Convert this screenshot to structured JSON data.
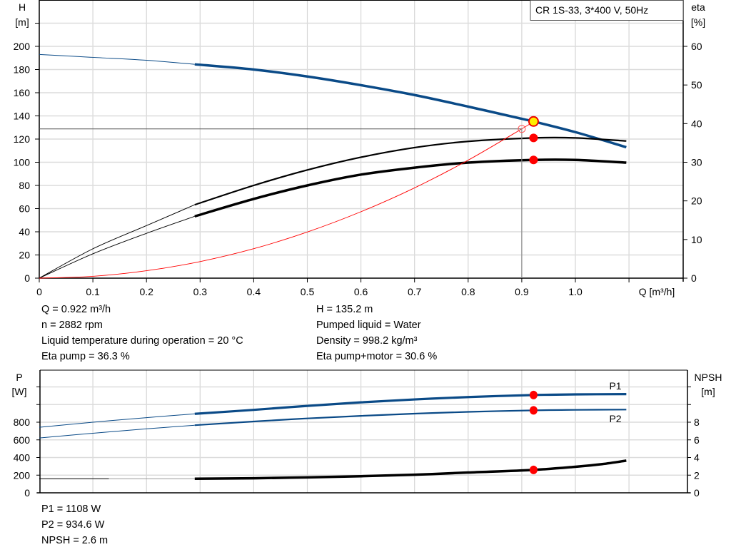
{
  "chart_data": [
    {
      "type": "line",
      "title": "CR 1S-33, 3*400 V, 50Hz",
      "xlabel": "Q [m³/h]",
      "ylabel_left": [
        "H",
        "[m]"
      ],
      "ylabel_right": [
        "eta",
        "[%]"
      ],
      "xlim": [
        0,
        1.2
      ],
      "ylim_left": [
        0,
        240
      ],
      "ylim_right": [
        0,
        72
      ],
      "x_ticks": [
        "0",
        "0.1",
        "0.2",
        "0.3",
        "0.4",
        "0.5",
        "0.6",
        "0.7",
        "0.8",
        "0.9",
        "1.0"
      ],
      "y_ticks_left": [
        "0",
        "20",
        "40",
        "60",
        "80",
        "100",
        "120",
        "140",
        "160",
        "180",
        "200"
      ],
      "y_ticks_right": [
        "0",
        "10",
        "20",
        "30",
        "40",
        "50",
        "60"
      ],
      "grid": true,
      "series": [
        {
          "key": "H",
          "axis": "left",
          "color": "#0a4a87",
          "x": [
            0,
            0.1,
            0.2,
            0.29,
            0.4,
            0.5,
            0.6,
            0.7,
            0.8,
            0.9,
            0.922,
            1.0,
            1.095
          ],
          "y": [
            193,
            190.5,
            188,
            184.5,
            180,
            174,
            166.5,
            158,
            148,
            137.5,
            135.2,
            126,
            113
          ]
        },
        {
          "key": "eta_pump",
          "axis": "right",
          "color": "#000000",
          "x": [
            0,
            0.1,
            0.2,
            0.29,
            0.4,
            0.5,
            0.6,
            0.7,
            0.8,
            0.922,
            1.0,
            1.095
          ],
          "y": [
            0,
            7.6,
            13.6,
            19,
            24,
            28,
            31.3,
            33.8,
            35.4,
            36.3,
            36.3,
            35.5
          ]
        },
        {
          "key": "eta_pump_motor",
          "axis": "right",
          "color": "#000000",
          "x": [
            0,
            0.1,
            0.2,
            0.29,
            0.4,
            0.5,
            0.6,
            0.7,
            0.8,
            0.922,
            1.0,
            1.095
          ],
          "y": [
            0,
            6.3,
            11.6,
            16,
            20.5,
            24,
            26.8,
            28.6,
            29.9,
            30.6,
            30.6,
            29.9
          ]
        },
        {
          "key": "system_curve",
          "axis": "left",
          "color": "#ff0000",
          "x": [
            0,
            0.1,
            0.2,
            0.3,
            0.4,
            0.5,
            0.6,
            0.7,
            0.8,
            0.9,
            0.922
          ],
          "y": [
            0,
            1.6,
            6.4,
            14.3,
            25.4,
            39.8,
            57.3,
            77.9,
            101.8,
            128.8,
            135.2
          ]
        }
      ],
      "duty_point": {
        "Q": 0.922,
        "H": 135.2,
        "eta_pump": 36.3,
        "eta_pump_motor": 30.6
      },
      "requested_point": {
        "Q": 0.9,
        "H": 128.8
      }
    },
    {
      "type": "line",
      "ylabel_left": [
        "P",
        "[W]"
      ],
      "ylabel_right": [
        "NPSH",
        "[m]"
      ],
      "xlim": [
        0,
        1.2
      ],
      "ylim_left": [
        0,
        1400
      ],
      "ylim_right": [
        0,
        14
      ],
      "y_ticks_left": [
        "0",
        "200",
        "400",
        "600",
        "800"
      ],
      "y_ticks_right": [
        "0",
        "2",
        "4",
        "6",
        "8"
      ],
      "grid": true,
      "series": [
        {
          "key": "P1",
          "name": "P1",
          "axis": "left",
          "color": "#0a4a87",
          "x": [
            0,
            0.1,
            0.2,
            0.29,
            0.4,
            0.5,
            0.6,
            0.7,
            0.8,
            0.922,
            1.0,
            1.095
          ],
          "y": [
            742,
            800,
            852,
            895,
            940,
            985,
            1025,
            1058,
            1085,
            1108,
            1115,
            1118
          ]
        },
        {
          "key": "P2",
          "name": "P2",
          "axis": "left",
          "color": "#0a4a87",
          "x": [
            0,
            0.1,
            0.2,
            0.29,
            0.4,
            0.5,
            0.6,
            0.7,
            0.8,
            0.922,
            1.0,
            1.095
          ],
          "y": [
            621,
            675,
            725,
            766,
            808,
            843,
            872,
            897,
            917,
            934.6,
            940,
            943
          ]
        },
        {
          "key": "NPSH",
          "axis": "right",
          "color": "#000000",
          "x": [
            0,
            0.13,
            0.29,
            0.4,
            0.5,
            0.6,
            0.7,
            0.8,
            0.922,
            1.0,
            1.05,
            1.095
          ],
          "y": [
            1.6,
            1.6,
            1.6,
            1.65,
            1.75,
            1.88,
            2.05,
            2.3,
            2.6,
            2.95,
            3.25,
            3.65
          ]
        }
      ],
      "duty_point": {
        "Q": 0.922,
        "P1": 1108,
        "P2": 934.6,
        "NPSH": 2.6
      }
    }
  ],
  "info_top": {
    "left": [
      "Q = 0.922 m³/h",
      "n = 2882 rpm",
      "Liquid temperature during operation = 20 °C",
      "Eta pump = 36.3 %"
    ],
    "right": [
      "H = 135.2 m",
      "Pumped liquid = Water",
      "Density = 998.2 kg/m³",
      "Eta pump+motor = 30.6 %"
    ]
  },
  "info_bottom": [
    "P1 = 1108 W",
    "P2 = 934.6 W",
    "NPSH = 2.6 m"
  ]
}
